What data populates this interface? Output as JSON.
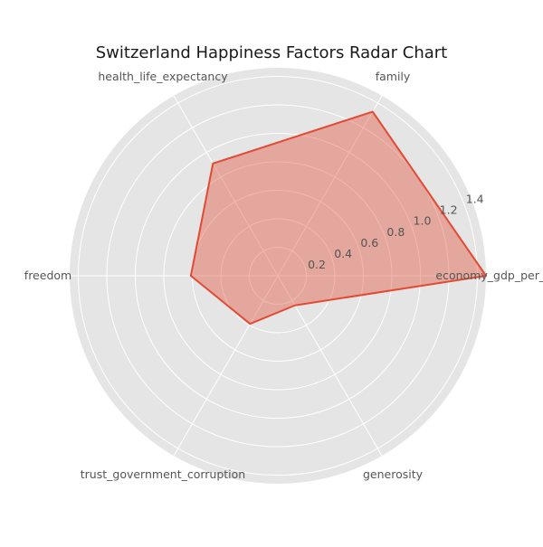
{
  "chart_data": {
    "type": "radar",
    "title": "Switzerland Happiness Factors Radar Chart",
    "axes": [
      "economy_gdp_per_capita",
      "family",
      "health_life_expectancy",
      "freedom",
      "trust_government_corruption",
      "generosity"
    ],
    "series": [
      {
        "values": [
          1.46,
          1.33,
          0.91,
          0.61,
          0.39,
          0.24
        ]
      }
    ],
    "r_ticks": [
      0.2,
      0.4,
      0.6,
      0.8,
      1.0,
      1.2,
      1.4
    ],
    "r_tick_labels": [
      "0.2",
      "0.4",
      "0.6",
      "0.8",
      "1.0",
      "1.2",
      "1.4"
    ],
    "rlim": [
      0,
      1.46
    ],
    "grid": true,
    "colors": {
      "background": "#e5e5e5",
      "grid": "#ffffff",
      "series_line": "#e24a33",
      "series_fill": "#e24a33"
    }
  }
}
